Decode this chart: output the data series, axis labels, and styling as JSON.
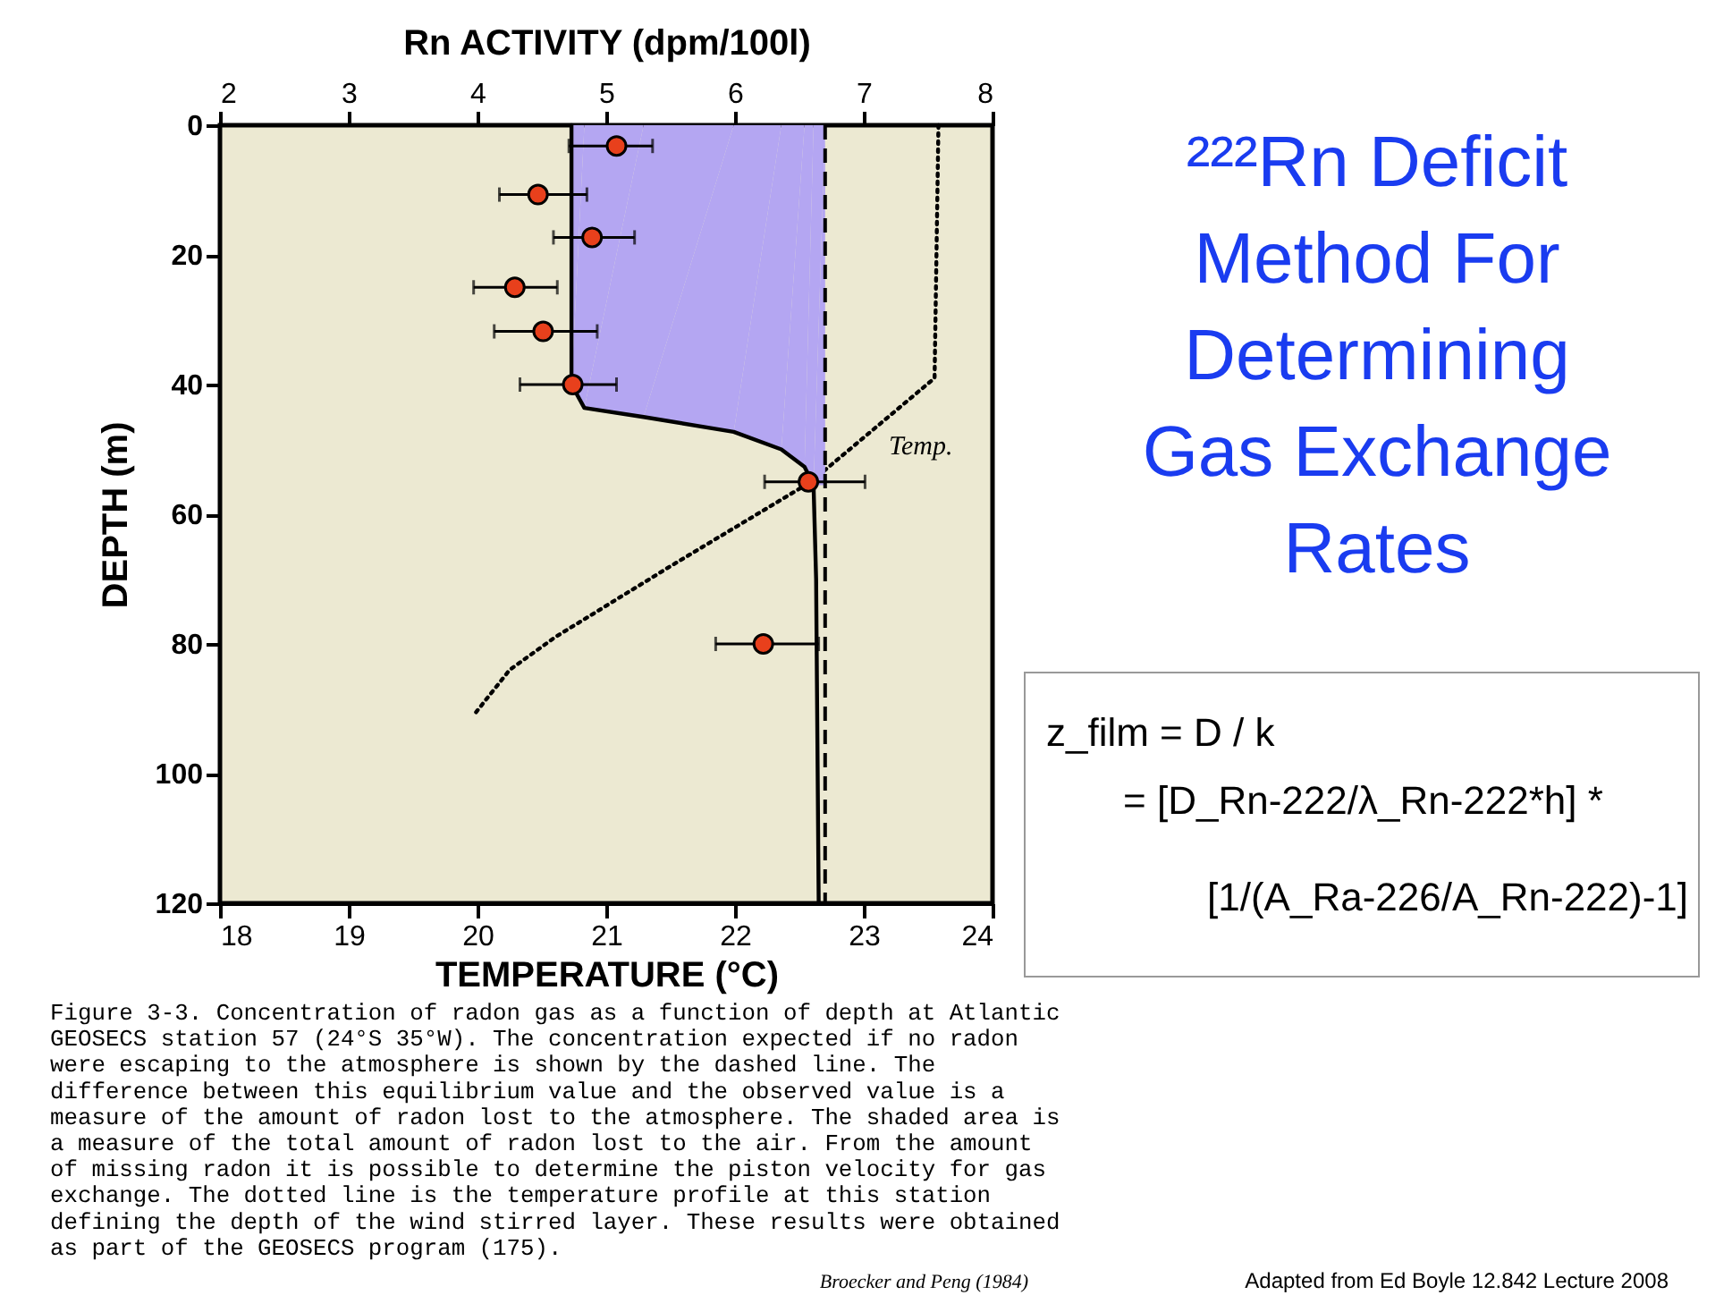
{
  "chart_data": {
    "type": "scatter",
    "title": "²²²Rn Deficit Method For Determining Gas Exchange Rates",
    "xlabel": "TEMPERATURE (°C)",
    "x2label": "Rn ACTIVITY (dpm/100l)",
    "ylabel": "DEPTH (m)",
    "xlim": [
      18,
      24
    ],
    "xticks": [
      18,
      19,
      20,
      21,
      22,
      23,
      24
    ],
    "x2lim": [
      2,
      8
    ],
    "x2ticks": [
      2,
      3,
      4,
      5,
      6,
      7,
      8
    ],
    "ylim": [
      120,
      0
    ],
    "yticks": [
      0,
      20,
      40,
      60,
      80,
      100,
      120
    ],
    "series": [
      {
        "type": "area",
        "axis": "x2",
        "color": "#b4a6f2",
        "x": [
          4.73,
          4.73,
          4.83,
          5.29,
          5.99,
          6.36,
          6.54,
          6.61,
          6.7
        ],
        "values": [
          0,
          40,
          43.6,
          45,
          47.3,
          50,
          52.7,
          55.5,
          55.5
        ]
      },
      {
        "type": "line",
        "axis": "x2",
        "color": "#000000",
        "line_style": "solid",
        "marker": "none",
        "x": [
          4.73,
          4.73,
          4.83,
          5.29,
          5.99,
          6.36,
          6.54,
          6.61,
          6.63,
          6.65
        ],
        "values": [
          0,
          40,
          43.6,
          45,
          47.3,
          50,
          52.7,
          55.5,
          70,
          120
        ]
      },
      {
        "type": "line",
        "color": "#000000",
        "line_style": "dotted",
        "marker": "none",
        "x": [
          23.58,
          23.55,
          23.4,
          22.59,
          21.5,
          20.6,
          20.25,
          19.97
        ],
        "values": [
          0,
          39,
          41.5,
          55,
          68,
          79,
          84,
          91
        ]
      },
      {
        "axis": "x2",
        "color": "#e8401c",
        "marker": "circle",
        "x": [
          5.08,
          4.47,
          4.89,
          4.29,
          4.51,
          4.74,
          6.57,
          6.22
        ],
        "values": [
          3.2,
          10.7,
          17.3,
          25,
          31.8,
          40,
          55,
          80
        ],
        "xerrors": [
          [
            4.71,
            5.36
          ],
          [
            4.17,
            4.85
          ],
          [
            4.59,
            5.22
          ],
          [
            3.97,
            4.62
          ],
          [
            4.13,
            4.93
          ],
          [
            4.33,
            5.08
          ],
          [
            6.23,
            7.01
          ],
          [
            5.85,
            6.65
          ]
        ]
      }
    ],
    "ref_lines": [
      {
        "axis": "x2",
        "value": 6.7,
        "line_style": "dashed",
        "color": "#000000"
      }
    ],
    "annotations": [
      "Temp.",
      "z_film = D / k",
      "= [D_Rn-222/λ_Rn-222*h] *",
      "[1/(A_Ra-226/A_Rn-222)-1]",
      "Figure 3-3. Concentration of radon gas as a function of depth at Atlantic GEOSECS station 57 (24°S 35°W). The concentration expected if no radon were escaping to the atmosphere is shown by the dashed line. The difference between this equilibrium value and the observed value is a measure of the amount of radon lost to the atmosphere. The shaded area is a measure of the total amount of radon lost to the air. From the amount of missing radon it is possible to determine the piston velocity for gas exchange. The dotted line is the temperature profile at this station defining the depth of the wind stirred layer. These results were obtained as part of the GEOSECS program (175).",
      "Broecker and Peng (1984)",
      "Adapted from Ed Boyle 12.842 Lecture 2008"
    ]
  }
}
